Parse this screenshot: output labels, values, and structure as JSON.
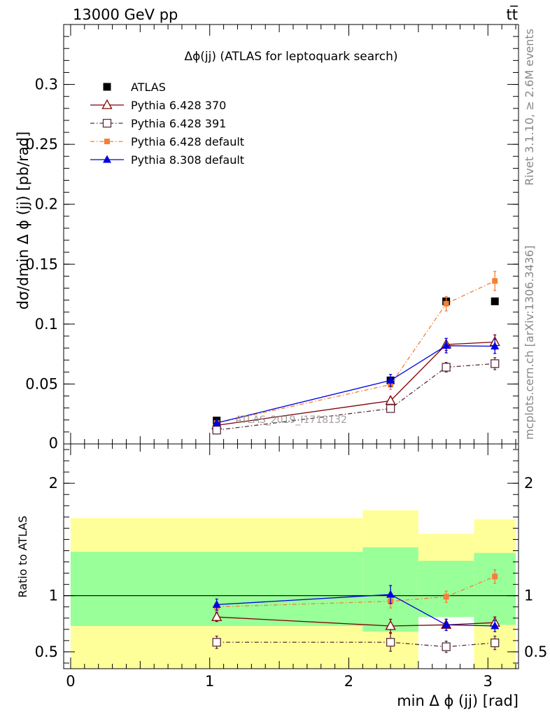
{
  "header": {
    "left": "13000 GeV pp",
    "right": "tt̅"
  },
  "side_labels": {
    "rivet": "Rivet 3.1.10, ≥ 2.6M events",
    "mcplots": "mcplots.cern.ch [arXiv:1306.3436]"
  },
  "chart_data": [
    {
      "type": "line",
      "title": "Δϕ(jj) (ATLAS for leptoquark search)",
      "ylabel": "dσ/dmin Δ ϕ (jj) [pb/rad]",
      "xlim": [
        -0.05,
        3.22
      ],
      "ylim": [
        0,
        0.35
      ],
      "yticks": [
        {
          "v": 0.05,
          "label": "0.05"
        },
        {
          "v": 0.1,
          "label": "0.1"
        },
        {
          "v": 0.15,
          "label": "0.15"
        },
        {
          "v": 0.2,
          "label": "0.2"
        },
        {
          "v": 0.25,
          "label": "0.25"
        },
        {
          "v": 0.3,
          "label": "0.3"
        }
      ],
      "ytick_zero": "0",
      "legend_position": "top-left",
      "watermark": "ATLAS_2019_I1718132",
      "series": [
        {
          "name": "ATLAS",
          "color": "#000000",
          "marker": "square-filled",
          "x": [
            1.05,
            2.3,
            2.7,
            3.05
          ],
          "y": [
            0.0195,
            0.053,
            0.119,
            0.119
          ],
          "err": [
            0,
            0,
            0,
            0
          ]
        },
        {
          "name": "Pythia 6.428 370",
          "color": "#7f0000",
          "marker": "triangle-open",
          "dash": "",
          "x": [
            1.05,
            2.3,
            2.7,
            3.05
          ],
          "y": [
            0.0155,
            0.036,
            0.083,
            0.085
          ],
          "err": [
            0.002,
            0.003,
            0.005,
            0.006
          ]
        },
        {
          "name": "Pythia 6.428 391",
          "color": "#5a2d3c",
          "marker": "square-open",
          "dash": "6,3,1.5,3",
          "x": [
            1.05,
            2.3,
            2.7,
            3.05
          ],
          "y": [
            0.0115,
            0.0295,
            0.064,
            0.067
          ],
          "err": [
            0.002,
            0.003,
            0.004,
            0.005
          ]
        },
        {
          "name": "Pythia 6.428 default",
          "color": "#f47f38",
          "marker": "square-filled-small",
          "dash": "6,3,1.5,3",
          "x": [
            1.05,
            2.3,
            2.7,
            3.05
          ],
          "y": [
            0.0175,
            0.0495,
            0.117,
            0.136
          ],
          "err": [
            0.002,
            0.004,
            0.006,
            0.008
          ]
        },
        {
          "name": "Pythia 8.308 default",
          "color": "#0000dd",
          "marker": "triangle-filled",
          "dash": "",
          "x": [
            1.05,
            2.3,
            2.7,
            3.05
          ],
          "y": [
            0.0175,
            0.053,
            0.082,
            0.0815
          ],
          "err": [
            0.002,
            0.005,
            0.006,
            0.006
          ]
        }
      ]
    },
    {
      "type": "line",
      "ylabel": "Ratio to ATLAS",
      "xlabel": "min Δ ϕ (jj) [rad]",
      "xlim": [
        -0.05,
        3.22
      ],
      "ylim": [
        0.35,
        2.35
      ],
      "yticks": [
        {
          "v": 0.5,
          "label": "0.5"
        },
        {
          "v": 1,
          "label": "1"
        },
        {
          "v": 2,
          "label": "2"
        }
      ],
      "xticks": [
        {
          "v": 0,
          "label": "0"
        },
        {
          "v": 1,
          "label": "1"
        },
        {
          "v": 2,
          "label": "2"
        },
        {
          "v": 3,
          "label": "3"
        }
      ],
      "bands": [
        {
          "x0": 0,
          "x1": 2.1,
          "yellow": [
            0.35,
            1.69
          ],
          "green": [
            0.73,
            1.39
          ]
        },
        {
          "x0": 2.1,
          "x1": 2.5,
          "yellow": [
            0.35,
            1.76
          ],
          "green": [
            0.68,
            1.43
          ]
        },
        {
          "x0": 2.5,
          "x1": 2.9,
          "yellow": [
            0.81,
            1.55
          ],
          "green": [
            0.81,
            1.31
          ]
        },
        {
          "x0": 2.9,
          "x1": 3.2,
          "yellow": [
            0.35,
            1.68
          ],
          "green": [
            0.74,
            1.38
          ]
        }
      ],
      "band_colors": {
        "yellow": "#ffff99",
        "green": "#99ff99"
      },
      "series": [
        {
          "name": "Pythia 6.428 370",
          "color": "#7f0000",
          "marker": "triangle-open",
          "dash": "",
          "x": [
            1.05,
            2.3,
            2.7,
            3.05
          ],
          "y": [
            0.81,
            0.73,
            0.74,
            0.76
          ],
          "err": [
            0.04,
            0.06,
            0.05,
            0.05
          ]
        },
        {
          "name": "Pythia 6.428 391",
          "color": "#5a2d3c",
          "marker": "square-open",
          "dash": "6,3,1.5,3",
          "x": [
            1.05,
            2.3,
            2.7,
            3.05
          ],
          "y": [
            0.585,
            0.585,
            0.545,
            0.58
          ],
          "err": [
            0.055,
            0.08,
            0.05,
            0.06
          ]
        },
        {
          "name": "Pythia 6.428 default",
          "color": "#f47f38",
          "marker": "square-filled-small",
          "dash": "6,3,1.5,3",
          "x": [
            1.05,
            2.3,
            2.7,
            3.05
          ],
          "y": [
            0.9,
            0.95,
            0.99,
            1.17
          ],
          "err": [
            0.04,
            0.06,
            0.05,
            0.06
          ]
        },
        {
          "name": "Pythia 8.308 default",
          "color": "#0000dd",
          "marker": "triangle-filled",
          "dash": "",
          "x": [
            1.05,
            2.3,
            2.7,
            3.05
          ],
          "y": [
            0.92,
            1.01,
            0.74,
            0.73
          ],
          "err": [
            0.05,
            0.08,
            0.05,
            0.05
          ]
        }
      ]
    }
  ]
}
